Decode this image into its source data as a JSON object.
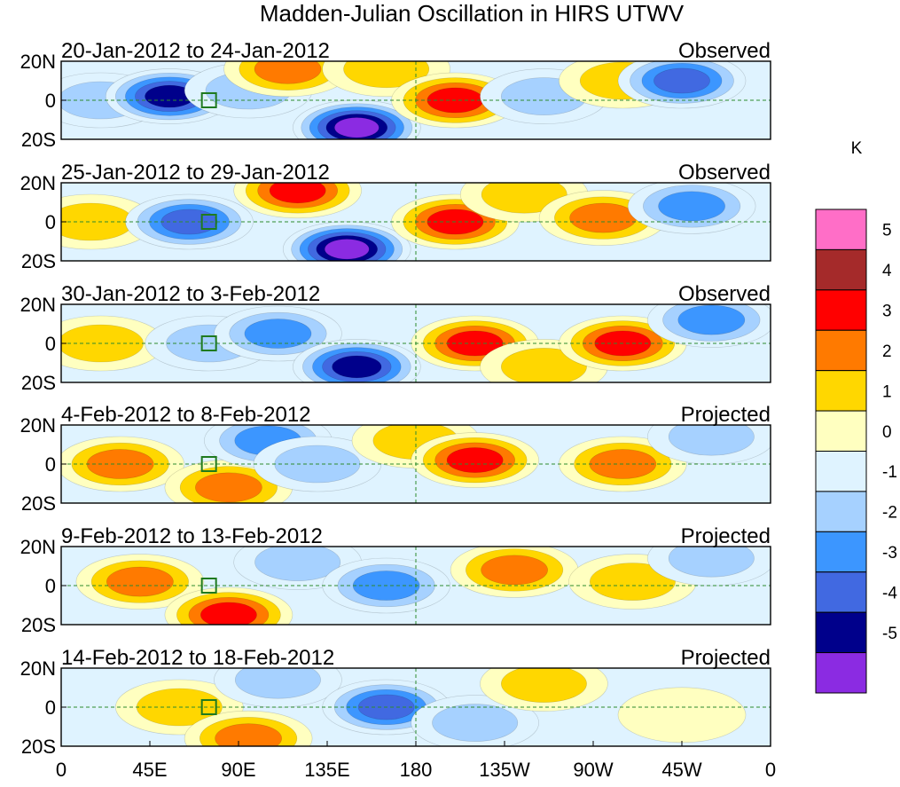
{
  "chart_data": {
    "type": "heatmap",
    "title": "Madden-Julian Oscillation in HIRS UTWV",
    "units": "K",
    "xticks": [
      "0",
      "45E",
      "90E",
      "135E",
      "180",
      "135W",
      "90W",
      "45W",
      "0"
    ],
    "yticks": [
      "20N",
      "0",
      "20S"
    ],
    "xlim": [
      0,
      360
    ],
    "ylim": [
      -20,
      20
    ],
    "panels": [
      {
        "period": "20-Jan-2012 to 24-Jan-2012",
        "status": "Observed",
        "anomalies": [
          {
            "lon": 20,
            "lat": 0,
            "value": -1.5
          },
          {
            "lon": 55,
            "lat": 2,
            "value": -4.5
          },
          {
            "lon": 95,
            "lat": 5,
            "value": -1.5
          },
          {
            "lon": 115,
            "lat": 16,
            "value": 2.5
          },
          {
            "lon": 150,
            "lat": -14,
            "value": -5.5
          },
          {
            "lon": 165,
            "lat": 16,
            "value": 1.5
          },
          {
            "lon": 200,
            "lat": 0,
            "value": 3.5
          },
          {
            "lon": 245,
            "lat": 2,
            "value": -1.5
          },
          {
            "lon": 285,
            "lat": 10,
            "value": 1.5
          },
          {
            "lon": 315,
            "lat": 10,
            "value": -3.5
          }
        ]
      },
      {
        "period": "25-Jan-2012 to 29-Jan-2012",
        "status": "Observed",
        "anomalies": [
          {
            "lon": 15,
            "lat": 0,
            "value": 1.5
          },
          {
            "lon": 65,
            "lat": 0,
            "value": -3.5
          },
          {
            "lon": 120,
            "lat": 16,
            "value": 3.5
          },
          {
            "lon": 145,
            "lat": -14,
            "value": -5.5
          },
          {
            "lon": 200,
            "lat": 0,
            "value": 3.5
          },
          {
            "lon": 235,
            "lat": 14,
            "value": 1.5
          },
          {
            "lon": 275,
            "lat": 2,
            "value": 2.5
          },
          {
            "lon": 320,
            "lat": 8,
            "value": -2.5
          }
        ]
      },
      {
        "period": "30-Jan-2012 to 3-Feb-2012",
        "status": "Observed",
        "anomalies": [
          {
            "lon": 20,
            "lat": 0,
            "value": 1.5
          },
          {
            "lon": 75,
            "lat": 0,
            "value": -1.5
          },
          {
            "lon": 110,
            "lat": 5,
            "value": -2.5
          },
          {
            "lon": 150,
            "lat": -12,
            "value": -4.5
          },
          {
            "lon": 210,
            "lat": 0,
            "value": 3.5
          },
          {
            "lon": 245,
            "lat": -12,
            "value": 1.5
          },
          {
            "lon": 285,
            "lat": 0,
            "value": 3.5
          },
          {
            "lon": 330,
            "lat": 12,
            "value": -2.5
          }
        ]
      },
      {
        "period": "4-Feb-2012 to 8-Feb-2012",
        "status": "Projected",
        "anomalies": [
          {
            "lon": 30,
            "lat": 0,
            "value": 2.5
          },
          {
            "lon": 85,
            "lat": -12,
            "value": 2.5
          },
          {
            "lon": 105,
            "lat": 12,
            "value": -2.5
          },
          {
            "lon": 130,
            "lat": 0,
            "value": -1.5
          },
          {
            "lon": 180,
            "lat": 12,
            "value": 1.5
          },
          {
            "lon": 210,
            "lat": 2,
            "value": 3.5
          },
          {
            "lon": 285,
            "lat": 0,
            "value": 2.5
          },
          {
            "lon": 330,
            "lat": 14,
            "value": -1.5
          }
        ]
      },
      {
        "period": "9-Feb-2012 to 13-Feb-2012",
        "status": "Projected",
        "anomalies": [
          {
            "lon": 40,
            "lat": 2,
            "value": 2.5
          },
          {
            "lon": 85,
            "lat": -15,
            "value": 3.5
          },
          {
            "lon": 120,
            "lat": 12,
            "value": -1.5
          },
          {
            "lon": 165,
            "lat": 0,
            "value": -2.5
          },
          {
            "lon": 230,
            "lat": 8,
            "value": 2.5
          },
          {
            "lon": 290,
            "lat": 2,
            "value": 1.5
          },
          {
            "lon": 330,
            "lat": 14,
            "value": -1.5
          }
        ]
      },
      {
        "period": "14-Feb-2012 to 18-Feb-2012",
        "status": "Projected",
        "anomalies": [
          {
            "lon": 60,
            "lat": 0,
            "value": 1.5
          },
          {
            "lon": 95,
            "lat": -16,
            "value": 2.5
          },
          {
            "lon": 110,
            "lat": 14,
            "value": -1.5
          },
          {
            "lon": 165,
            "lat": 0,
            "value": -3.5
          },
          {
            "lon": 210,
            "lat": -8,
            "value": -1.5
          },
          {
            "lon": 245,
            "lat": 12,
            "value": 1.5
          },
          {
            "lon": 315,
            "lat": -4,
            "value": 0.5
          }
        ]
      }
    ],
    "colorbar": {
      "labels": [
        "5",
        "4",
        "3",
        "2",
        "1",
        "0",
        "-1",
        "-2",
        "-3",
        "-4",
        "-5"
      ],
      "colors": [
        "#ff6ec7",
        "#a52a2a",
        "#ff0000",
        "#ff7a00",
        "#ffd700",
        "#ffffc0",
        "#dff3ff",
        "#a6d1ff",
        "#3c96ff",
        "#4169e1",
        "#00008b",
        "#8b2be2"
      ]
    }
  }
}
